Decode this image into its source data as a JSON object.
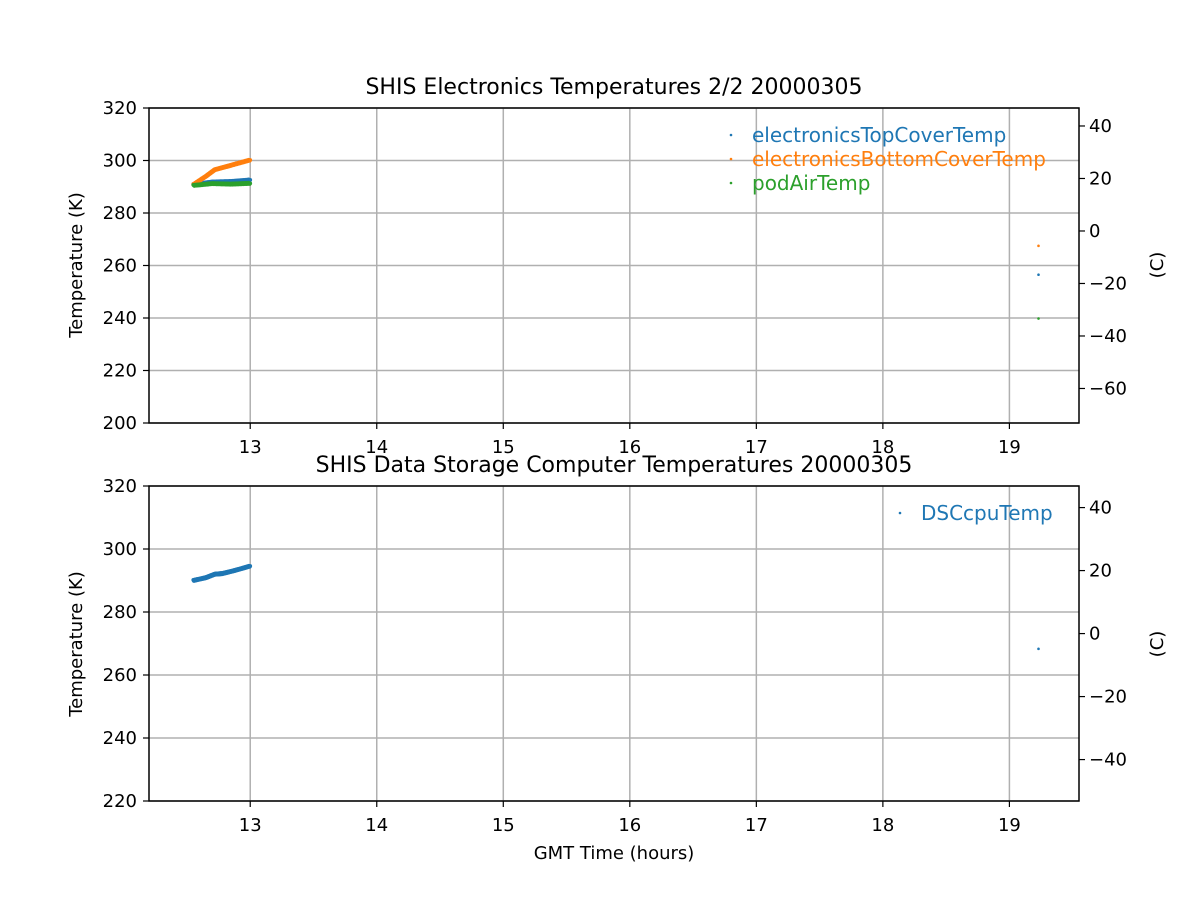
{
  "figure": {
    "xlabel": "GMT Time (hours)"
  },
  "colors": {
    "electronicsTopCoverTemp": "#1f77b4",
    "electronicsBottomCoverTemp": "#ff7f0e",
    "podAirTemp": "#2ca02c",
    "DSCcpuTemp": "#1f77b4",
    "grid": "#b0b0b0"
  },
  "chart_data": [
    {
      "type": "scatter",
      "title": "SHIS Electronics Temperatures 2/2 20000305",
      "xlabel": "",
      "ylabel": "Temperature (K)",
      "ylabel_right": "(C)",
      "xlim": [
        12.2,
        19.55
      ],
      "ylim": [
        200,
        320
      ],
      "ylim_right": [
        -73.15,
        46.85
      ],
      "xticks": [
        13,
        14,
        15,
        16,
        17,
        18,
        19
      ],
      "yticks": [
        200,
        220,
        240,
        260,
        280,
        300,
        320
      ],
      "yticks_right": [
        -60,
        -40,
        -20,
        0,
        20,
        40
      ],
      "grid": true,
      "legend_position": "top-right",
      "series": [
        {
          "name": "electronicsTopCoverTemp",
          "segments": [
            [
              12.55,
              290.8
            ],
            [
              12.7,
              291.8
            ],
            [
              12.85,
              292.0
            ],
            [
              13.0,
              292.6
            ]
          ],
          "points": [
            [
              19.23,
              256.5
            ]
          ]
        },
        {
          "name": "electronicsBottomCoverTemp",
          "segments": [
            [
              12.55,
              290.8
            ],
            [
              12.65,
              294.0
            ],
            [
              12.72,
              296.5
            ],
            [
              12.85,
              298.2
            ],
            [
              13.0,
              300.2
            ]
          ],
          "points": [
            [
              19.23,
              267.5
            ]
          ]
        },
        {
          "name": "podAirTemp",
          "segments": [
            [
              12.55,
              290.5
            ],
            [
              12.7,
              291.2
            ],
            [
              12.85,
              291.0
            ],
            [
              13.0,
              291.3
            ]
          ],
          "points": [
            [
              19.23,
              239.8
            ]
          ]
        }
      ]
    },
    {
      "type": "scatter",
      "title": "SHIS Data Storage Computer Temperatures 20000305",
      "xlabel": "GMT Time (hours)",
      "ylabel": "Temperature (K)",
      "ylabel_right": "(C)",
      "xlim": [
        12.2,
        19.55
      ],
      "ylim": [
        220,
        320
      ],
      "ylim_right": [
        -53.15,
        46.85
      ],
      "xticks": [
        13,
        14,
        15,
        16,
        17,
        18,
        19
      ],
      "yticks": [
        220,
        240,
        260,
        280,
        300,
        320
      ],
      "yticks_right": [
        -40,
        -20,
        0,
        20,
        40
      ],
      "grid": true,
      "legend_position": "top-right",
      "series": [
        {
          "name": "DSCcpuTemp",
          "segments": [
            [
              12.55,
              290.0
            ],
            [
              12.65,
              290.9
            ],
            [
              12.72,
              292.0
            ],
            [
              12.78,
              292.2
            ],
            [
              12.88,
              293.2
            ],
            [
              13.0,
              294.6
            ]
          ],
          "points": [
            [
              19.23,
              268.3
            ]
          ]
        }
      ]
    }
  ]
}
